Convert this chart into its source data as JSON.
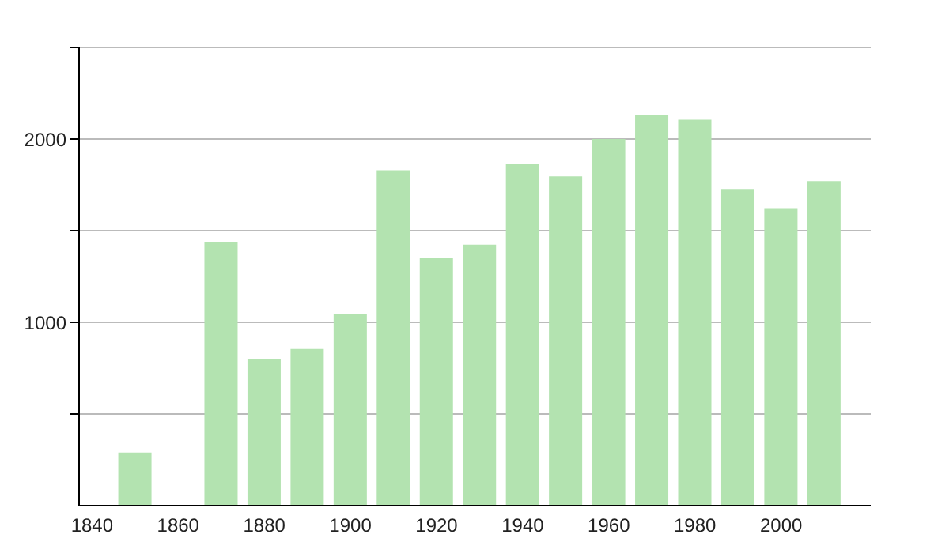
{
  "chart_data": {
    "type": "bar",
    "x": [
      1850,
      1870,
      1880,
      1890,
      1900,
      1910,
      1920,
      1930,
      1940,
      1950,
      1960,
      1970,
      1980,
      1990,
      2000,
      2010
    ],
    "values": [
      290,
      1440,
      800,
      855,
      1045,
      1830,
      1353,
      1424,
      1865,
      1796,
      2000,
      2132,
      2106,
      1727,
      1623,
      1770
    ],
    "color": "#b3e3b0",
    "xlim": [
      1837,
      2021
    ],
    "xticks": [
      1840,
      1860,
      1880,
      1900,
      1920,
      1940,
      1960,
      1980,
      2000
    ],
    "ylim": [
      0,
      2500
    ],
    "yticks": [
      {
        "value": 500,
        "label": null
      },
      1000,
      {
        "value": 1500,
        "label": null
      },
      2000,
      {
        "value": 2500,
        "label": null
      }
    ],
    "grid": "y"
  }
}
